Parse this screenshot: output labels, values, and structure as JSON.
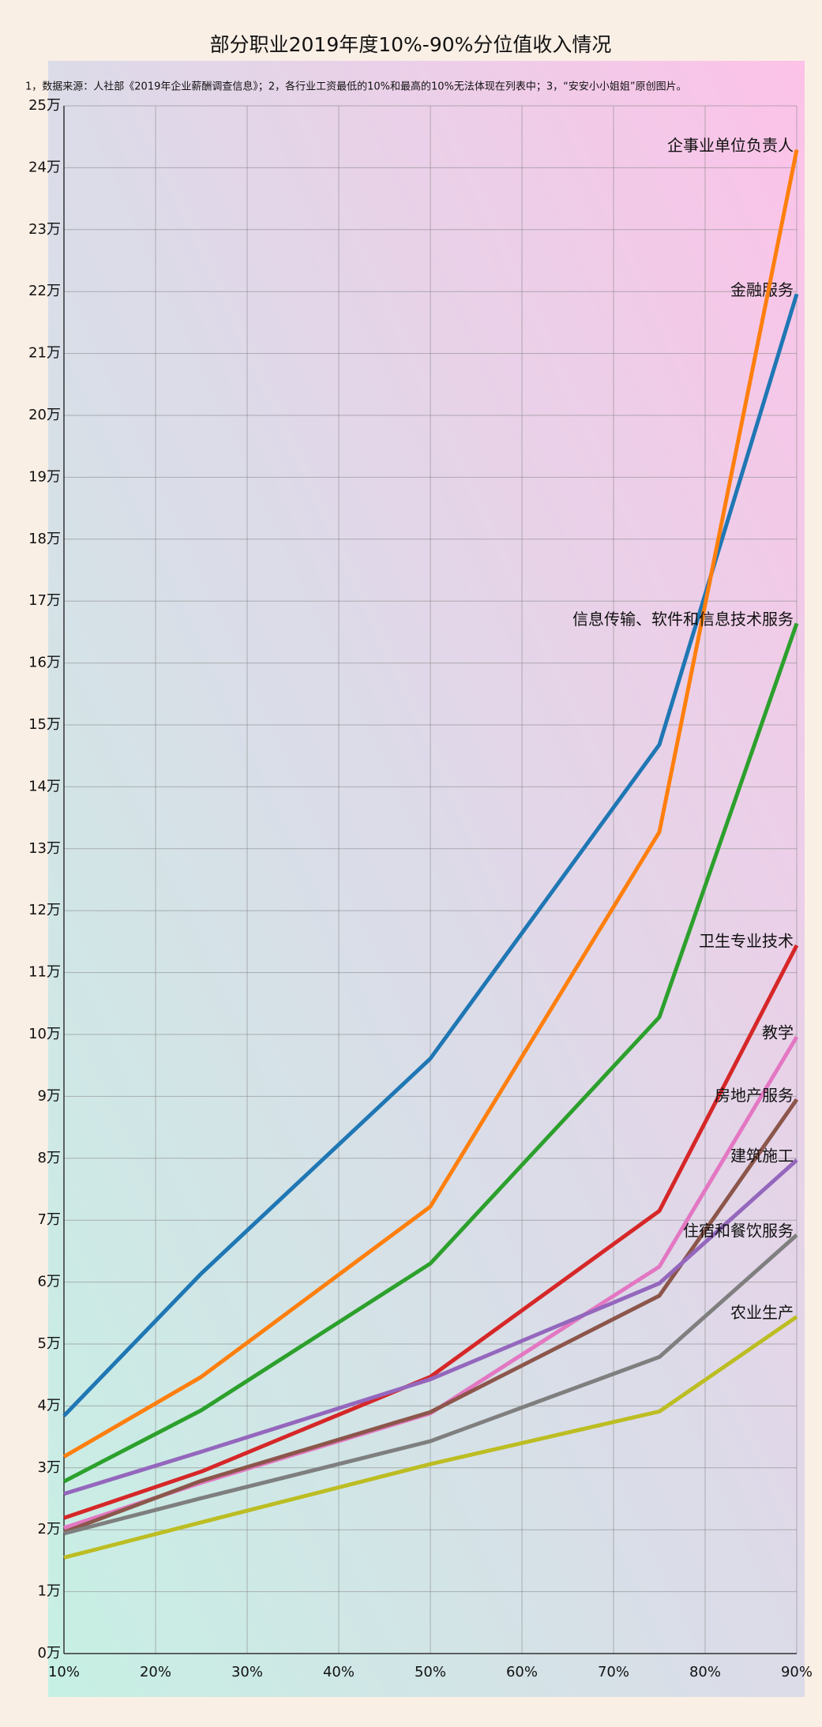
{
  "chart_data": {
    "type": "line",
    "title": "部分职业2019年度10%-90%分位值收入情况",
    "subtitle": "1，数据来源：人社部《2019年企业薪酬调查信息》；2，各行业工资最低的10%和最高的10%无法体现在列表中；3，“安安小小姐姐”原创图片。",
    "x": [
      10,
      25,
      50,
      75,
      90
    ],
    "xlim": [
      10,
      90
    ],
    "xticks": [
      {
        "value": 10,
        "label": "10%"
      },
      {
        "value": 20,
        "label": "20%"
      },
      {
        "value": 30,
        "label": "30%"
      },
      {
        "value": 40,
        "label": "40%"
      },
      {
        "value": 50,
        "label": "50%"
      },
      {
        "value": 60,
        "label": "60%"
      },
      {
        "value": 70,
        "label": "70%"
      },
      {
        "value": 80,
        "label": "80%"
      },
      {
        "value": 90,
        "label": "90%"
      }
    ],
    "ylim": [
      0,
      25
    ],
    "yticks": [
      {
        "value": 0,
        "label": "0万"
      },
      {
        "value": 1,
        "label": "1万"
      },
      {
        "value": 2,
        "label": "2万"
      },
      {
        "value": 3,
        "label": "3万"
      },
      {
        "value": 4,
        "label": "4万"
      },
      {
        "value": 5,
        "label": "5万"
      },
      {
        "value": 6,
        "label": "6万"
      },
      {
        "value": 7,
        "label": "7万"
      },
      {
        "value": 8,
        "label": "8万"
      },
      {
        "value": 9,
        "label": "9万"
      },
      {
        "value": 10,
        "label": "10万"
      },
      {
        "value": 11,
        "label": "11万"
      },
      {
        "value": 12,
        "label": "12万"
      },
      {
        "value": 13,
        "label": "13万"
      },
      {
        "value": 14,
        "label": "14万"
      },
      {
        "value": 15,
        "label": "15万"
      },
      {
        "value": 16,
        "label": "16万"
      },
      {
        "value": 17,
        "label": "17万"
      },
      {
        "value": 18,
        "label": "18万"
      },
      {
        "value": 19,
        "label": "19万"
      },
      {
        "value": 20,
        "label": "20万"
      },
      {
        "value": 21,
        "label": "21万"
      },
      {
        "value": 22,
        "label": "22万"
      },
      {
        "value": 23,
        "label": "23万"
      },
      {
        "value": 24,
        "label": "24万"
      },
      {
        "value": 25,
        "label": "25万"
      }
    ],
    "grid": true,
    "series": [
      {
        "name": "金融服务",
        "color": "#1f77b4",
        "values": [
          3.84,
          6.14,
          9.61,
          14.68,
          21.96
        ]
      },
      {
        "name": "企事业单位负责人",
        "color": "#ff7f0e",
        "values": [
          3.18,
          4.47,
          7.22,
          13.27,
          24.29
        ]
      },
      {
        "name": "信息传输、软件和信息技术服务",
        "color": "#2ca02c",
        "values": [
          2.78,
          3.93,
          6.3,
          10.28,
          16.64
        ]
      },
      {
        "name": "卫生专业技术",
        "color": "#d62728",
        "values": [
          2.19,
          2.94,
          4.47,
          7.15,
          11.44
        ]
      },
      {
        "name": "教学",
        "color": "#e377c2",
        "values": [
          2.03,
          2.76,
          3.88,
          6.25,
          9.96
        ]
      },
      {
        "name": "房地产服务",
        "color": "#8c564b",
        "values": [
          1.96,
          2.79,
          3.9,
          5.78,
          8.95
        ]
      },
      {
        "name": "建筑施工",
        "color": "#9467bd",
        "values": [
          2.58,
          3.26,
          4.43,
          5.98,
          7.97
        ]
      },
      {
        "name": "住宿和餐饮服务",
        "color": "#7f7f7f",
        "values": [
          1.94,
          2.51,
          3.43,
          4.79,
          6.76
        ]
      },
      {
        "name": "农业生产",
        "color": "#bcbd22",
        "values": [
          1.55,
          2.12,
          3.06,
          3.91,
          5.44
        ]
      }
    ]
  }
}
